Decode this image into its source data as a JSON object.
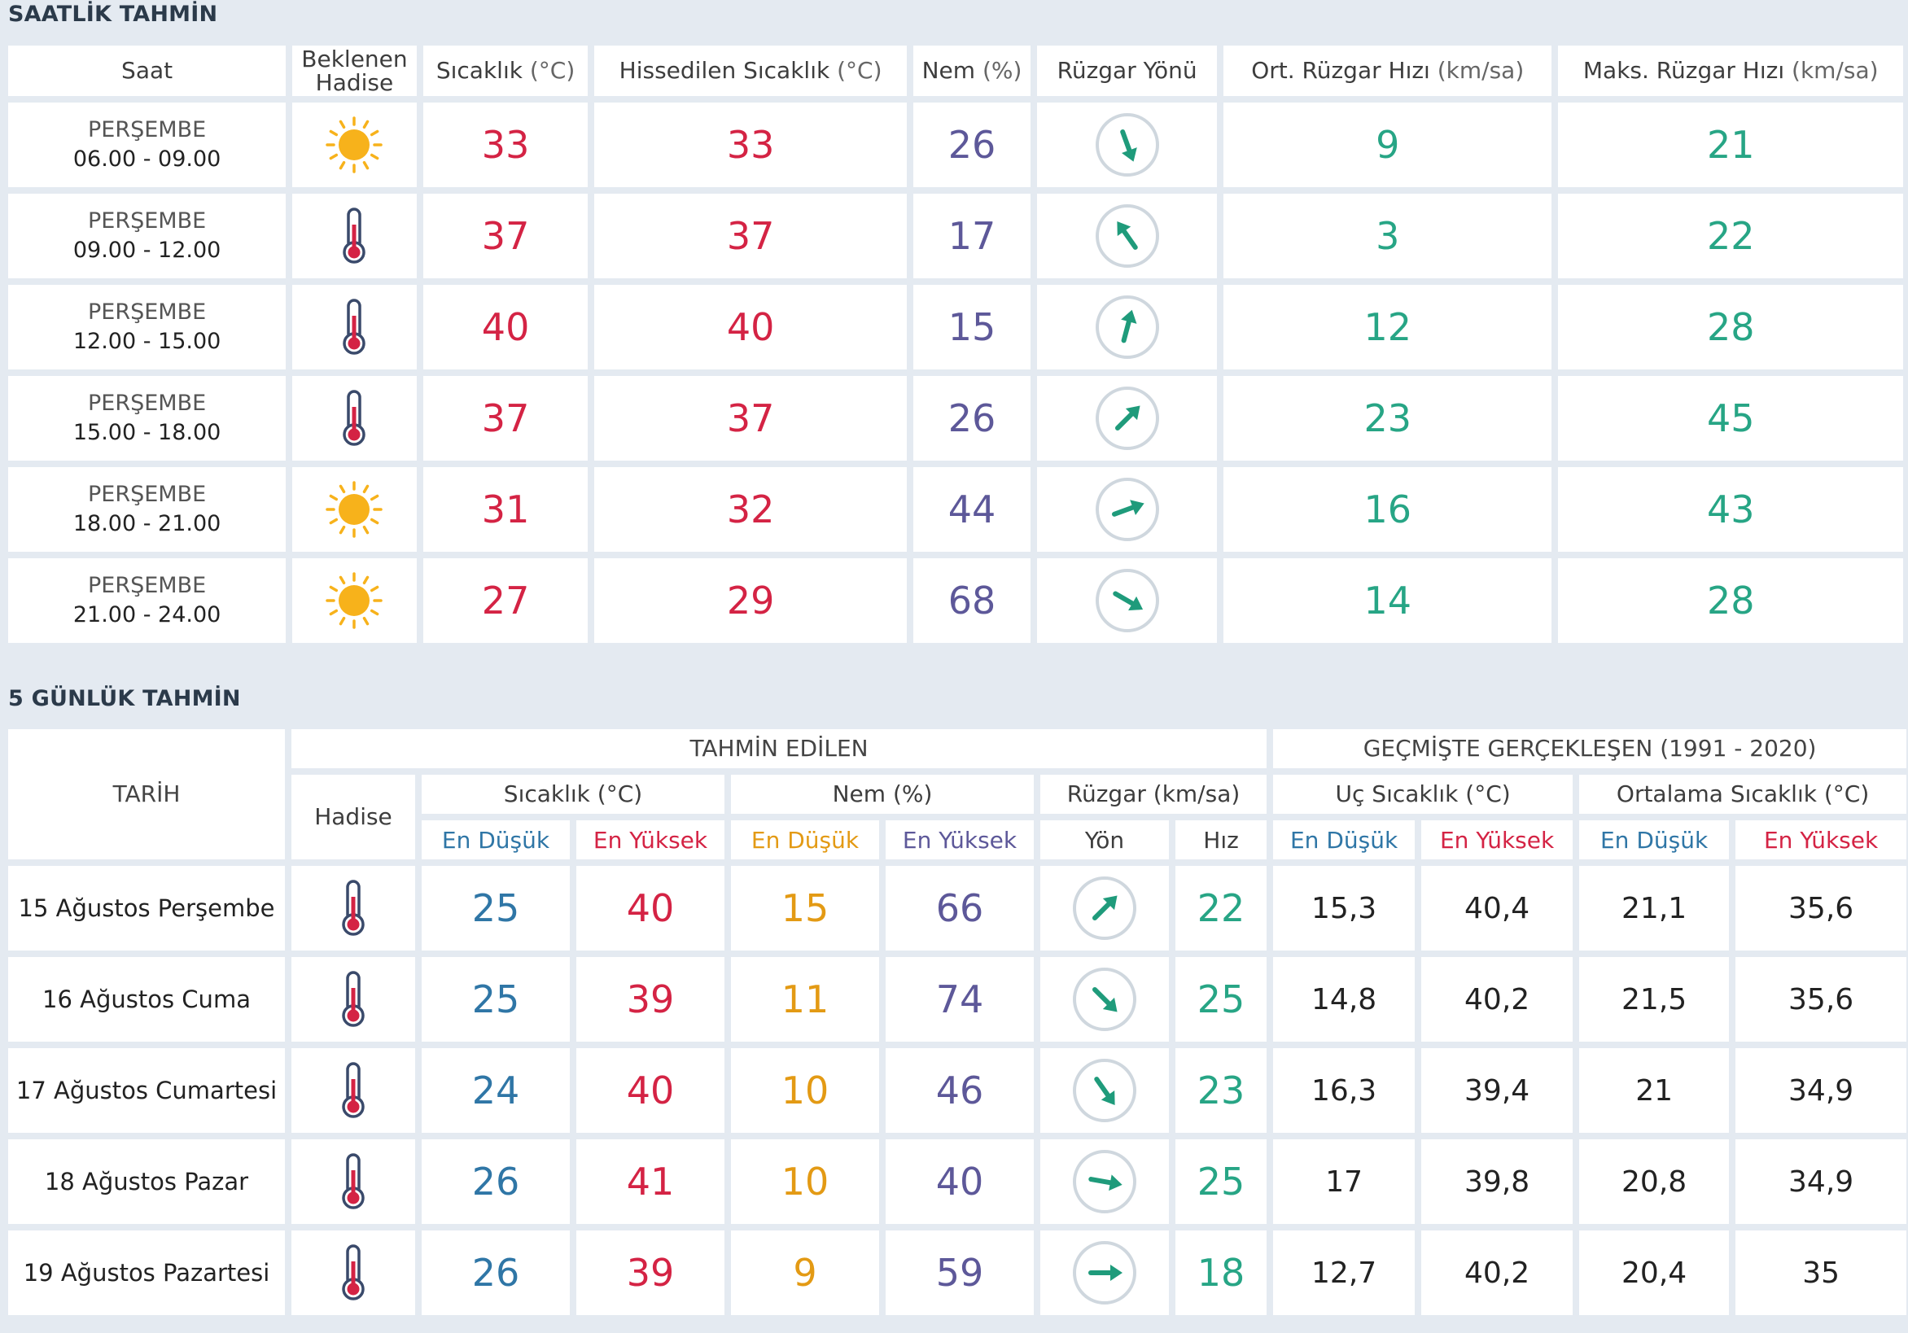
{
  "hourly": {
    "title": "SAATLİK TAHMİN",
    "headers": {
      "time": "Saat",
      "event": [
        "Beklenen",
        "Hadise"
      ],
      "temp": "Sıcaklık",
      "temp_unit": "(°C)",
      "feels": "Hissedilen Sıcaklık",
      "feels_unit": "(°C)",
      "humidity": "Nem",
      "humidity_unit": "(%)",
      "wind_dir": "Rüzgar Yönü",
      "avg_wind": "Ort. Rüzgar Hızı",
      "avg_wind_unit": "(km/sa)",
      "max_wind": "Maks. Rüzgar Hızı",
      "max_wind_unit": "(km/sa)"
    },
    "rows": [
      {
        "day": "PERŞEMBE",
        "range": "06.00 - 09.00",
        "icon": "sun-icon",
        "temp": "33",
        "feels": "33",
        "humidity": "26",
        "wind_deg": 160,
        "avg": "9",
        "max": "21"
      },
      {
        "day": "PERŞEMBE",
        "range": "09.00 - 12.00",
        "icon": "thermometer-icon",
        "temp": "37",
        "feels": "37",
        "humidity": "17",
        "wind_deg": -35,
        "avg": "3",
        "max": "22"
      },
      {
        "day": "PERŞEMBE",
        "range": "12.00 - 15.00",
        "icon": "thermometer-icon",
        "temp": "40",
        "feels": "40",
        "humidity": "15",
        "wind_deg": 15,
        "avg": "12",
        "max": "28"
      },
      {
        "day": "PERŞEMBE",
        "range": "15.00 - 18.00",
        "icon": "thermometer-icon",
        "temp": "37",
        "feels": "37",
        "humidity": "26",
        "wind_deg": 45,
        "avg": "23",
        "max": "45"
      },
      {
        "day": "PERŞEMBE",
        "range": "18.00 - 21.00",
        "icon": "sun-icon",
        "temp": "31",
        "feels": "32",
        "humidity": "44",
        "wind_deg": 70,
        "avg": "16",
        "max": "43"
      },
      {
        "day": "PERŞEMBE",
        "range": "21.00 - 24.00",
        "icon": "sun-icon",
        "temp": "27",
        "feels": "29",
        "humidity": "68",
        "wind_deg": 120,
        "avg": "14",
        "max": "28"
      }
    ]
  },
  "daily": {
    "title": "5 GÜNLÜK TAHMİN",
    "headers": {
      "date": "TARİH",
      "forecast": "TAHMİN EDİLEN",
      "history": "GEÇMİŞTE GERÇEKLEŞEN (1991 - 2020)",
      "event": "Hadise",
      "temp": "Sıcaklık (°C)",
      "humidity": "Nem (%)",
      "wind": "Rüzgar (km/sa)",
      "extreme": "Uç Sıcaklık (°C)",
      "average": "Ortalama Sıcaklık (°C)",
      "min": "En Düşük",
      "max": "En Yüksek",
      "dir": "Yön",
      "speed": "Hız"
    },
    "rows": [
      {
        "date": "15 Ağustos Perşembe",
        "icon": "thermometer-icon",
        "tmin": "25",
        "tmax": "40",
        "hmin": "15",
        "hmax": "66",
        "wind_deg": 45,
        "speed": "22",
        "emin": "15,3",
        "emax": "40,4",
        "amin": "21,1",
        "amax": "35,6"
      },
      {
        "date": "16 Ağustos Cuma",
        "icon": "thermometer-icon",
        "tmin": "25",
        "tmax": "39",
        "hmin": "11",
        "hmax": "74",
        "wind_deg": 135,
        "speed": "25",
        "emin": "14,8",
        "emax": "40,2",
        "amin": "21,5",
        "amax": "35,6"
      },
      {
        "date": "17 Ağustos Cumartesi",
        "icon": "thermometer-icon",
        "tmin": "24",
        "tmax": "40",
        "hmin": "10",
        "hmax": "46",
        "wind_deg": 145,
        "speed": "23",
        "emin": "16,3",
        "emax": "39,4",
        "amin": "21",
        "amax": "34,9"
      },
      {
        "date": "18 Ağustos Pazar",
        "icon": "thermometer-icon",
        "tmin": "26",
        "tmax": "41",
        "hmin": "10",
        "hmax": "40",
        "wind_deg": 100,
        "speed": "25",
        "emin": "17",
        "emax": "39,8",
        "amin": "20,8",
        "amax": "34,9"
      },
      {
        "date": "19 Ağustos Pazartesi",
        "icon": "thermometer-icon",
        "tmin": "26",
        "tmax": "39",
        "hmin": "9",
        "hmax": "59",
        "wind_deg": 90,
        "speed": "18",
        "emin": "12,7",
        "emax": "40,2",
        "amin": "20,4",
        "amax": "35"
      }
    ]
  },
  "colors": {
    "accent_red": "#d42344",
    "accent_green": "#27a585",
    "accent_purple": "#5d5899",
    "accent_blue": "#2f76a6",
    "accent_orange": "#e39a14"
  }
}
